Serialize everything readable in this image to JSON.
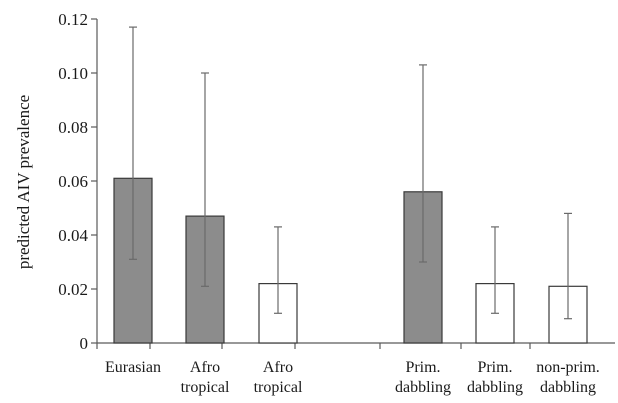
{
  "chart_data": {
    "type": "bar",
    "title": "",
    "xlabel": "",
    "ylabel": "predicted AIV prevalence",
    "ylim": [
      0,
      0.12
    ],
    "yticks": [
      "0",
      "0.02",
      "0.04",
      "0.06",
      "0.08",
      "0.10",
      "0.12"
    ],
    "grid": false,
    "legend": "none",
    "colors": {
      "filled": "#8c8c8c",
      "open": "#ffffff"
    },
    "groups": [
      {
        "bars": [
          {
            "label_lines": [
              "Eurasian"
            ],
            "value": 0.061,
            "err_low": 0.031,
            "err_high": 0.117,
            "fill": "filled"
          },
          {
            "label_lines": [
              "Afro",
              "tropical"
            ],
            "value": 0.047,
            "err_low": 0.021,
            "err_high": 0.1,
            "fill": "filled"
          },
          {
            "label_lines": [
              "Afro",
              "tropical"
            ],
            "value": 0.022,
            "err_low": 0.011,
            "err_high": 0.043,
            "fill": "open"
          }
        ]
      },
      {
        "bars": [
          {
            "label_lines": [
              "Prim.",
              "dabbling"
            ],
            "value": 0.056,
            "err_low": 0.03,
            "err_high": 0.103,
            "fill": "filled"
          },
          {
            "label_lines": [
              "Prim.",
              "dabbling"
            ],
            "value": 0.022,
            "err_low": 0.011,
            "err_high": 0.043,
            "fill": "open"
          },
          {
            "label_lines": [
              "non-prim.",
              "dabbling"
            ],
            "value": 0.021,
            "err_low": 0.009,
            "err_high": 0.048,
            "fill": "open"
          }
        ]
      }
    ]
  }
}
